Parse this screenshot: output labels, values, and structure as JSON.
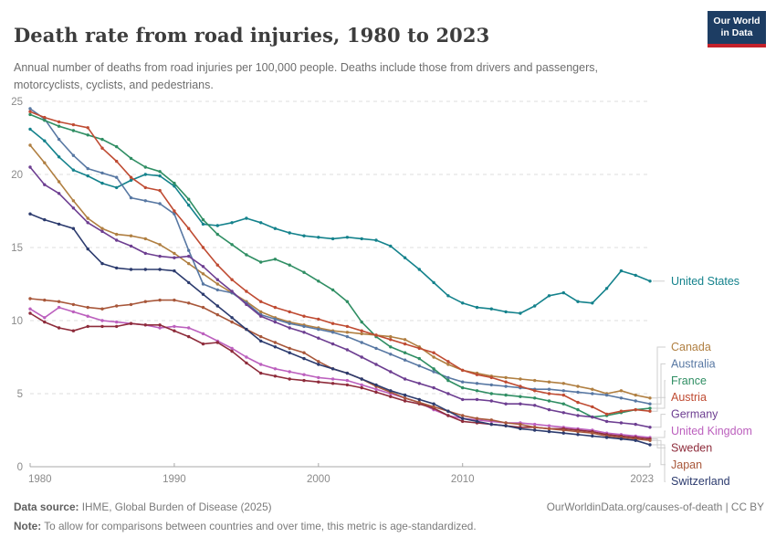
{
  "header": {
    "title": "Death rate from road injuries, 1980 to 2023",
    "subtitle": "Annual number of deaths from road injuries per 100,000 people. Deaths include those from drivers and passengers, motorcyclists, cyclists, and pedestrians.",
    "logo": {
      "line1": "Our World",
      "line2": "in Data",
      "bg_color": "#1D3D63",
      "bar_color": "#C4212A"
    }
  },
  "chart_data": {
    "type": "line",
    "title": "Death rate from road injuries, 1980 to 2023",
    "xlabel": "",
    "ylabel": "",
    "ylim": [
      0,
      25
    ],
    "y_ticks": [
      0,
      5,
      10,
      15,
      20,
      25
    ],
    "x_ticks": [
      1980,
      1990,
      2000,
      2010,
      2023
    ],
    "grid": "horizontal-dashed",
    "legend_position": "right",
    "marker": "dot",
    "x": [
      1980,
      1981,
      1982,
      1983,
      1984,
      1985,
      1986,
      1987,
      1988,
      1989,
      1990,
      1991,
      1992,
      1993,
      1994,
      1995,
      1996,
      1997,
      1998,
      1999,
      2000,
      2001,
      2002,
      2003,
      2004,
      2005,
      2006,
      2007,
      2008,
      2009,
      2010,
      2011,
      2012,
      2013,
      2014,
      2015,
      2016,
      2017,
      2018,
      2019,
      2020,
      2021,
      2022,
      2023
    ],
    "series": [
      {
        "name": "United States",
        "color": "#14828C",
        "values": [
          23.1,
          22.3,
          21.2,
          20.3,
          19.9,
          19.4,
          19.1,
          19.6,
          20.0,
          19.9,
          19.2,
          17.9,
          16.6,
          16.5,
          16.7,
          17.0,
          16.7,
          16.3,
          16.0,
          15.8,
          15.7,
          15.6,
          15.7,
          15.6,
          15.5,
          15.1,
          14.3,
          13.5,
          12.6,
          11.7,
          11.2,
          10.9,
          10.8,
          10.6,
          10.5,
          11.0,
          11.7,
          11.9,
          11.3,
          11.2,
          12.2,
          13.4,
          13.1,
          12.7
        ]
      },
      {
        "name": "Canada",
        "color": "#B07F41",
        "values": [
          22.0,
          20.8,
          19.5,
          18.2,
          17.0,
          16.3,
          15.9,
          15.8,
          15.6,
          15.2,
          14.6,
          13.9,
          13.2,
          12.5,
          11.9,
          11.3,
          10.6,
          10.2,
          9.9,
          9.7,
          9.5,
          9.3,
          9.2,
          9.1,
          9.0,
          8.9,
          8.7,
          8.2,
          7.5,
          7.0,
          6.6,
          6.4,
          6.2,
          6.1,
          6.0,
          5.9,
          5.8,
          5.7,
          5.5,
          5.3,
          5.0,
          5.2,
          4.9,
          4.7
        ]
      },
      {
        "name": "Australia",
        "color": "#5878A3",
        "values": [
          24.5,
          23.8,
          22.4,
          21.3,
          20.4,
          20.1,
          19.8,
          18.4,
          18.2,
          18.0,
          17.3,
          14.8,
          12.5,
          12.1,
          11.9,
          11.2,
          10.4,
          10.1,
          9.8,
          9.6,
          9.4,
          9.2,
          8.9,
          8.5,
          8.1,
          7.7,
          7.3,
          6.9,
          6.5,
          6.1,
          5.8,
          5.7,
          5.6,
          5.5,
          5.4,
          5.3,
          5.3,
          5.2,
          5.1,
          5.0,
          4.9,
          4.7,
          4.5,
          4.3
        ]
      },
      {
        "name": "France",
        "color": "#2F8E63",
        "values": [
          24.1,
          23.7,
          23.3,
          23.0,
          22.7,
          22.4,
          21.9,
          21.1,
          20.5,
          20.2,
          19.4,
          18.3,
          16.9,
          15.9,
          15.2,
          14.5,
          14.0,
          14.2,
          13.8,
          13.3,
          12.7,
          12.1,
          11.3,
          9.9,
          8.9,
          8.2,
          7.8,
          7.4,
          6.7,
          5.9,
          5.4,
          5.2,
          5.0,
          4.9,
          4.8,
          4.7,
          4.5,
          4.3,
          3.9,
          3.4,
          3.5,
          3.7,
          3.9,
          4.0
        ]
      },
      {
        "name": "Austria",
        "color": "#BF4B32",
        "values": [
          24.3,
          23.9,
          23.6,
          23.4,
          23.2,
          21.8,
          20.9,
          19.8,
          19.1,
          18.9,
          17.5,
          16.3,
          15.0,
          13.8,
          12.8,
          12.0,
          11.3,
          10.9,
          10.6,
          10.3,
          10.1,
          9.8,
          9.6,
          9.3,
          9.0,
          8.7,
          8.4,
          8.1,
          7.8,
          7.2,
          6.6,
          6.3,
          6.1,
          5.8,
          5.5,
          5.2,
          5.0,
          4.9,
          4.4,
          4.1,
          3.6,
          3.8,
          3.9,
          3.8
        ]
      },
      {
        "name": "Germany",
        "color": "#6D3E91",
        "values": [
          20.5,
          19.3,
          18.7,
          17.7,
          16.7,
          16.1,
          15.5,
          15.1,
          14.6,
          14.4,
          14.3,
          14.4,
          13.7,
          12.8,
          12.0,
          11.1,
          10.3,
          9.9,
          9.5,
          9.2,
          8.8,
          8.4,
          8.0,
          7.5,
          7.0,
          6.5,
          6.0,
          5.7,
          5.4,
          5.0,
          4.6,
          4.6,
          4.5,
          4.3,
          4.3,
          4.2,
          3.9,
          3.7,
          3.5,
          3.4,
          3.1,
          3.0,
          2.9,
          2.7
        ]
      },
      {
        "name": "United Kingdom",
        "color": "#BC60BE",
        "values": [
          10.8,
          10.2,
          10.9,
          10.6,
          10.3,
          10.0,
          9.9,
          9.8,
          9.7,
          9.5,
          9.6,
          9.5,
          9.1,
          8.6,
          8.1,
          7.5,
          7.0,
          6.7,
          6.5,
          6.3,
          6.1,
          6.0,
          5.9,
          5.6,
          5.3,
          5.0,
          4.7,
          4.4,
          3.9,
          3.5,
          3.3,
          3.2,
          3.1,
          3.0,
          3.0,
          2.9,
          2.8,
          2.7,
          2.6,
          2.5,
          2.3,
          2.2,
          2.1,
          2.0
        ]
      },
      {
        "name": "Sweden",
        "color": "#8E2C3B",
        "values": [
          10.5,
          9.9,
          9.5,
          9.3,
          9.6,
          9.6,
          9.6,
          9.8,
          9.7,
          9.7,
          9.3,
          8.9,
          8.4,
          8.5,
          7.9,
          7.1,
          6.4,
          6.2,
          6.0,
          5.9,
          5.8,
          5.7,
          5.6,
          5.4,
          5.1,
          4.8,
          4.5,
          4.3,
          4.0,
          3.5,
          3.1,
          3.0,
          2.9,
          2.8,
          2.7,
          2.7,
          2.6,
          2.6,
          2.5,
          2.4,
          2.2,
          2.1,
          2.0,
          1.9
        ]
      },
      {
        "name": "Japan",
        "color": "#A8573A",
        "values": [
          11.5,
          11.4,
          11.3,
          11.1,
          10.9,
          10.8,
          11.0,
          11.1,
          11.3,
          11.4,
          11.4,
          11.2,
          10.9,
          10.4,
          9.9,
          9.4,
          8.9,
          8.5,
          8.1,
          7.8,
          7.2,
          6.7,
          6.4,
          6.0,
          5.5,
          5.1,
          4.7,
          4.4,
          4.1,
          3.8,
          3.5,
          3.3,
          3.2,
          3.0,
          2.9,
          2.7,
          2.6,
          2.5,
          2.4,
          2.3,
          2.1,
          2.0,
          1.9,
          1.8
        ]
      },
      {
        "name": "Switzerland",
        "color": "#2C3B6E",
        "values": [
          17.3,
          16.9,
          16.6,
          16.3,
          14.9,
          13.9,
          13.6,
          13.5,
          13.5,
          13.5,
          13.4,
          12.6,
          11.8,
          11.0,
          10.2,
          9.4,
          8.6,
          8.2,
          7.8,
          7.4,
          7.0,
          6.7,
          6.4,
          6.0,
          5.6,
          5.2,
          4.9,
          4.6,
          4.3,
          3.8,
          3.3,
          3.1,
          2.9,
          2.8,
          2.6,
          2.5,
          2.4,
          2.3,
          2.2,
          2.1,
          2.0,
          1.9,
          1.8,
          1.5
        ]
      }
    ]
  },
  "footer": {
    "source_label": "Data source:",
    "source_value": " IHME, Global Burden of Disease (2025)",
    "link": "OurWorldinData.org/causes-of-death",
    "license": " | CC BY",
    "note_label": "Note:",
    "note_value": " To allow for comparisons between countries and over time, this metric is age-standardized."
  }
}
